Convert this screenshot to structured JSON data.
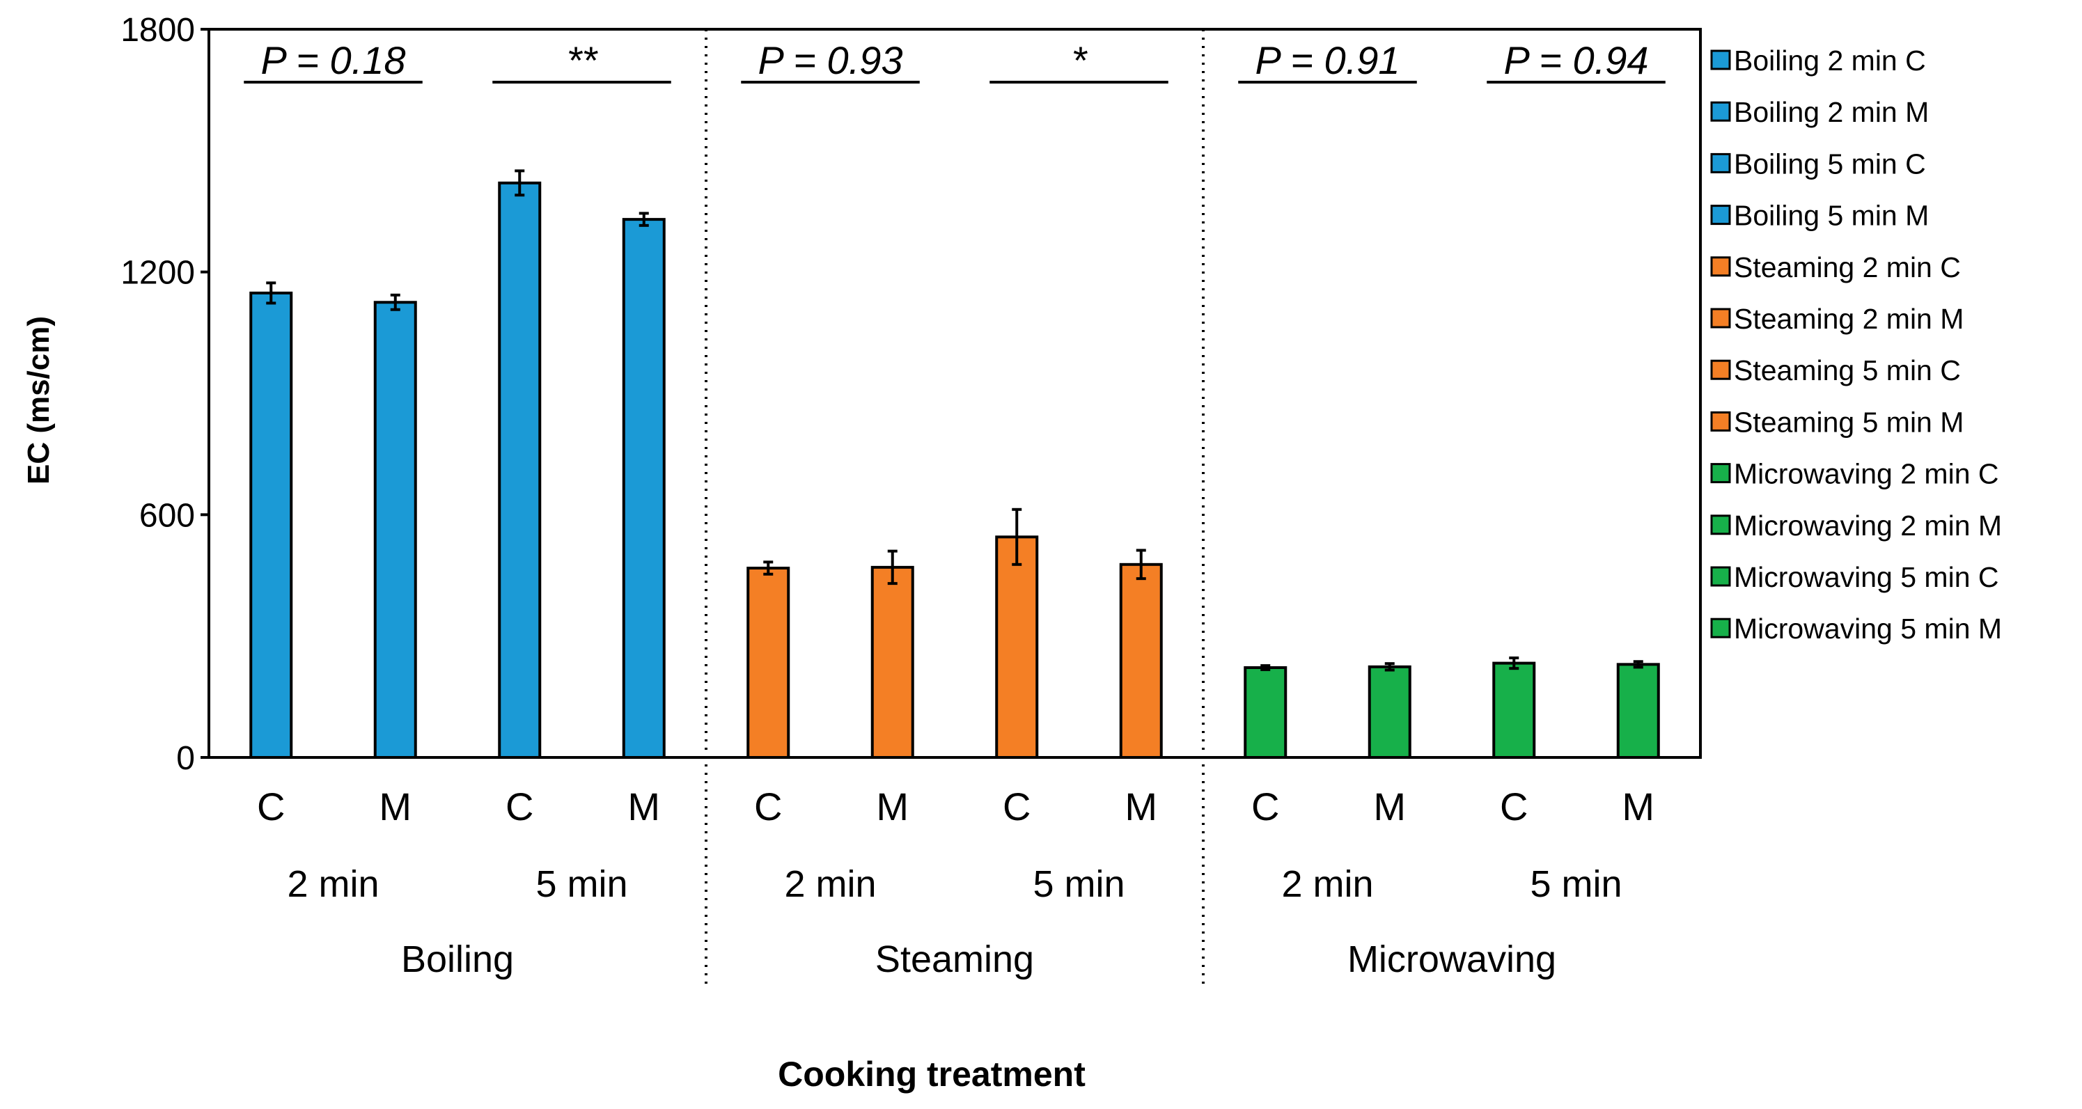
{
  "chart_data": {
    "type": "bar",
    "ylabel": "EC (ms/cm)",
    "xlabel": "Cooking treatment",
    "ylim": [
      0,
      1800
    ],
    "yticks": [
      0,
      600,
      1200,
      1800
    ],
    "grid": false,
    "legend_position": "right",
    "groups": [
      "Boiling",
      "Steaming",
      "Microwaving"
    ],
    "durations": [
      "2 min",
      "5 min"
    ],
    "sub_categories": [
      "C",
      "M"
    ],
    "colors": {
      "Boiling": "#1b9ad6",
      "Steaming": "#f47f25",
      "Microwaving": "#17b04a"
    },
    "bars": [
      {
        "group": "Boiling",
        "duration": "2 min",
        "type": "C",
        "value": 1148,
        "err": 25
      },
      {
        "group": "Boiling",
        "duration": "2 min",
        "type": "M",
        "value": 1125,
        "err": 18
      },
      {
        "group": "Boiling",
        "duration": "5 min",
        "type": "C",
        "value": 1420,
        "err": 30
      },
      {
        "group": "Boiling",
        "duration": "5 min",
        "type": "M",
        "value": 1330,
        "err": 15
      },
      {
        "group": "Steaming",
        "duration": "2 min",
        "type": "C",
        "value": 468,
        "err": 15
      },
      {
        "group": "Steaming",
        "duration": "2 min",
        "type": "M",
        "value": 470,
        "err": 40
      },
      {
        "group": "Steaming",
        "duration": "5 min",
        "type": "C",
        "value": 545,
        "err": 68
      },
      {
        "group": "Steaming",
        "duration": "5 min",
        "type": "M",
        "value": 477,
        "err": 35
      },
      {
        "group": "Microwaving",
        "duration": "2 min",
        "type": "C",
        "value": 222,
        "err": 5
      },
      {
        "group": "Microwaving",
        "duration": "2 min",
        "type": "M",
        "value": 224,
        "err": 8
      },
      {
        "group": "Microwaving",
        "duration": "5 min",
        "type": "C",
        "value": 233,
        "err": 13
      },
      {
        "group": "Microwaving",
        "duration": "5 min",
        "type": "M",
        "value": 230,
        "err": 7
      }
    ],
    "annotations": [
      {
        "text": "P = 0.18",
        "group": "Boiling",
        "duration": "2 min",
        "italic": true
      },
      {
        "text": "**",
        "group": "Boiling",
        "duration": "5 min",
        "italic": false
      },
      {
        "text": "P = 0.93",
        "group": "Steaming",
        "duration": "2 min",
        "italic": true
      },
      {
        "text": "*",
        "group": "Steaming",
        "duration": "5 min",
        "italic": false
      },
      {
        "text": "P = 0.91",
        "group": "Microwaving",
        "duration": "2 min",
        "italic": true
      },
      {
        "text": "P = 0.94",
        "group": "Microwaving",
        "duration": "5 min",
        "italic": true
      }
    ],
    "legend": [
      {
        "label": "Boiling 2 min C",
        "group": "Boiling"
      },
      {
        "label": "Boiling 2 min M",
        "group": "Boiling"
      },
      {
        "label": "Boiling 5 min C",
        "group": "Boiling"
      },
      {
        "label": "Boiling 5 min M",
        "group": "Boiling"
      },
      {
        "label": "Steaming 2 min C",
        "group": "Steaming"
      },
      {
        "label": "Steaming 2 min M",
        "group": "Steaming"
      },
      {
        "label": "Steaming 5 min C",
        "group": "Steaming"
      },
      {
        "label": "Steaming 5 min M",
        "group": "Steaming"
      },
      {
        "label": "Microwaving 2 min C",
        "group": "Microwaving"
      },
      {
        "label": "Microwaving 2 min M",
        "group": "Microwaving"
      },
      {
        "label": "Microwaving 5 min C",
        "group": "Microwaving"
      },
      {
        "label": "Microwaving 5 min M",
        "group": "Microwaving"
      }
    ]
  }
}
